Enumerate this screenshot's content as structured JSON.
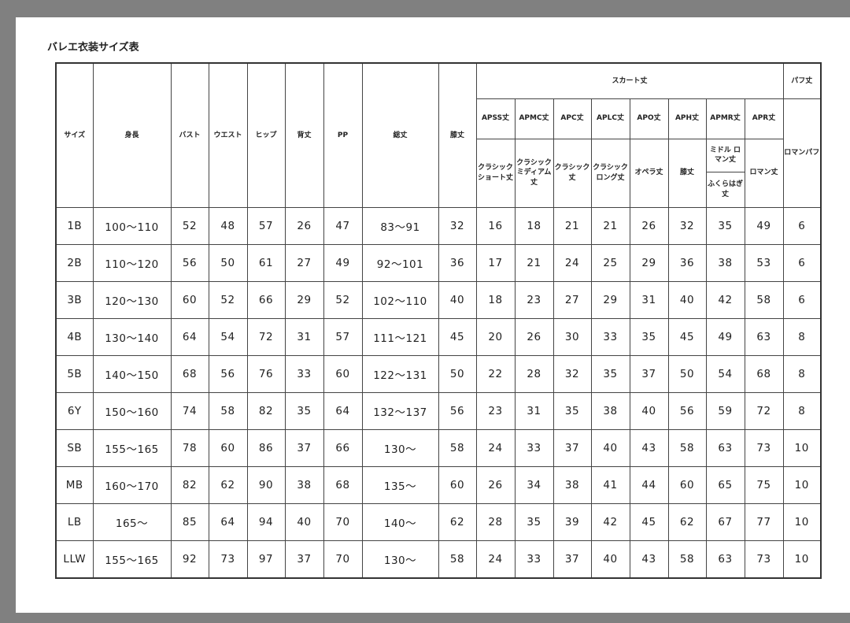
{
  "title": "バレエ衣装サイズ表",
  "headers": {
    "main": [
      "サイズ",
      "身長",
      "バスト",
      "ウエスト",
      "ヒップ",
      "背丈",
      "PP",
      "総丈",
      "膝丈"
    ],
    "skirt_group": "スカート丈",
    "puff_group": "パフ丈",
    "skirt_codes": [
      "APSS丈",
      "APMC丈",
      "APC丈",
      "APLC丈",
      "APO丈",
      "APH丈",
      "APMR丈",
      "APR丈"
    ],
    "skirt_desc": [
      "クラシック ショート丈",
      "クラシック ミディアム丈",
      "クラシック丈",
      "クラシック ロング丈",
      "オペラ丈",
      "膝丈",
      "ミドル ロマン丈",
      "ロマン丈"
    ],
    "skirt_desc_apmr_alt": "ふくらはぎ丈",
    "puff_desc": "ロマンパフ"
  },
  "rows": [
    [
      "1B",
      "100〜110",
      "52",
      "48",
      "57",
      "26",
      "47",
      "83〜91",
      "32",
      "16",
      "18",
      "21",
      "21",
      "26",
      "32",
      "35",
      "49",
      "6"
    ],
    [
      "2B",
      "110〜120",
      "56",
      "50",
      "61",
      "27",
      "49",
      "92〜101",
      "36",
      "17",
      "21",
      "24",
      "25",
      "29",
      "36",
      "38",
      "53",
      "6"
    ],
    [
      "3B",
      "120〜130",
      "60",
      "52",
      "66",
      "29",
      "52",
      "102〜110",
      "40",
      "18",
      "23",
      "27",
      "29",
      "31",
      "40",
      "42",
      "58",
      "6"
    ],
    [
      "4B",
      "130〜140",
      "64",
      "54",
      "72",
      "31",
      "57",
      "111〜121",
      "45",
      "20",
      "26",
      "30",
      "33",
      "35",
      "45",
      "49",
      "63",
      "8"
    ],
    [
      "5B",
      "140〜150",
      "68",
      "56",
      "76",
      "33",
      "60",
      "122〜131",
      "50",
      "22",
      "28",
      "32",
      "35",
      "37",
      "50",
      "54",
      "68",
      "8"
    ],
    [
      "6Y",
      "150〜160",
      "74",
      "58",
      "82",
      "35",
      "64",
      "132〜137",
      "56",
      "23",
      "31",
      "35",
      "38",
      "40",
      "56",
      "59",
      "72",
      "8"
    ],
    [
      "SB",
      "155〜165",
      "78",
      "60",
      "86",
      "37",
      "66",
      "130〜",
      "58",
      "24",
      "33",
      "37",
      "40",
      "43",
      "58",
      "63",
      "73",
      "10"
    ],
    [
      "MB",
      "160〜170",
      "82",
      "62",
      "90",
      "38",
      "68",
      "135〜",
      "60",
      "26",
      "34",
      "38",
      "41",
      "44",
      "60",
      "65",
      "75",
      "10"
    ],
    [
      "LB",
      "165〜",
      "85",
      "64",
      "94",
      "40",
      "70",
      "140〜",
      "62",
      "28",
      "35",
      "39",
      "42",
      "45",
      "62",
      "67",
      "77",
      "10"
    ],
    [
      "LLW",
      "155〜165",
      "92",
      "73",
      "97",
      "37",
      "70",
      "130〜",
      "58",
      "24",
      "33",
      "37",
      "40",
      "43",
      "58",
      "63",
      "73",
      "10"
    ]
  ]
}
